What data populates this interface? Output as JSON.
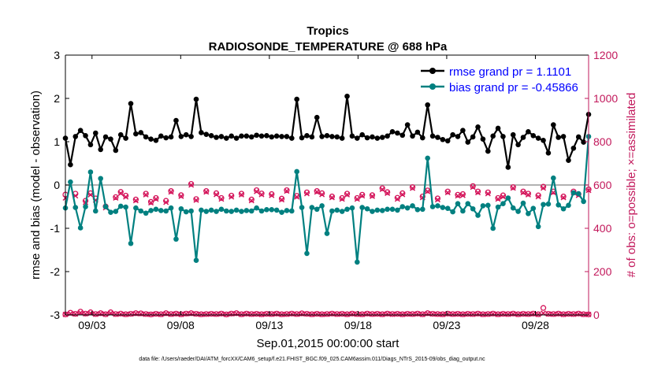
{
  "chart_data": {
    "type": "line",
    "title": "Tropics",
    "subtitle": "RADIOSONDE_TEMPERATURE @ 688 hPa",
    "xlabel": "Sep.01,2015 00:00:00 start",
    "ylabel_left": "rmse and bias (model - observation)",
    "ylabel_right": "# of obs: o=possible; ×=assimilated",
    "footer": "data file: /Users/raeder/DAI/ATM_forcXX/CAM6_setup/f.e21.FHIST_BGC.f09_025.CAM6assim.011/Diags_NTrS_2015-09/obs_diag_output.nc",
    "x_range": [
      1.5,
      31.0
    ],
    "ylim_left": [
      -3,
      3
    ],
    "ylim_right": [
      0,
      1200
    ],
    "x_ticks": [
      3,
      8,
      13,
      18,
      23,
      28
    ],
    "x_tick_labels": [
      "09/03",
      "09/08",
      "09/13",
      "09/18",
      "09/23",
      "09/28"
    ],
    "y_left_ticks": [
      -3,
      -2,
      -1,
      0,
      1,
      2,
      3
    ],
    "y_right_ticks": [
      0,
      200,
      400,
      600,
      800,
      1000,
      1200
    ],
    "zero_line": 0,
    "colors": {
      "rmse": "#000000",
      "bias": "#008080",
      "counts": "#d4145a",
      "legend_text": "#0000ff",
      "right_axis": "#c2185b"
    },
    "legend": [
      {
        "name": "rmse grand pr = 1.1101",
        "series": "rmse"
      },
      {
        "name": "bias grand pr = -0.45866",
        "series": "bias"
      }
    ],
    "series": [
      {
        "name": "rmse",
        "axis": "left",
        "values": [
          1.08,
          0.47,
          1.12,
          1.26,
          1.14,
          0.93,
          1.2,
          0.82,
          1.11,
          1.06,
          0.8,
          1.16,
          1.08,
          1.88,
          1.18,
          1.21,
          1.11,
          1.06,
          1.03,
          1.13,
          1.09,
          1.11,
          1.49,
          1.12,
          1.16,
          1.12,
          1.98,
          1.21,
          1.17,
          1.14,
          1.1,
          1.12,
          1.08,
          1.13,
          1.08,
          1.13,
          1.13,
          1.11,
          1.15,
          1.13,
          1.14,
          1.11,
          1.13,
          1.12,
          1.12,
          1.08,
          1.98,
          1.09,
          1.14,
          1.11,
          1.56,
          1.12,
          1.14,
          1.12,
          1.11,
          1.08,
          2.05,
          1.13,
          1.08,
          1.16,
          1.09,
          1.11,
          1.08,
          1.1,
          1.13,
          1.23,
          1.2,
          1.15,
          1.39,
          1.13,
          1.22,
          1.09,
          1.85,
          1.13,
          1.1,
          1.05,
          1.02,
          1.16,
          1.12,
          1.26,
          0.99,
          1.11,
          1.34,
          1.06,
          0.78,
          1.13,
          1.31,
          1.12,
          0.41,
          1.16,
          0.93,
          1.1,
          1.23,
          1.14,
          1.08,
          1.03,
          0.74,
          1.39,
          1.1,
          1.12,
          0.57,
          0.85,
          1.11,
          0.99,
          1.63
        ]
      },
      {
        "name": "bias",
        "axis": "left",
        "values": [
          -0.53,
          0.07,
          -0.52,
          -0.99,
          -0.5,
          0.3,
          -0.6,
          0.15,
          -0.5,
          -0.63,
          -0.61,
          -0.49,
          -0.51,
          -1.35,
          -0.53,
          -0.6,
          -0.65,
          -0.59,
          -0.56,
          -0.59,
          -0.6,
          -0.53,
          -1.25,
          -0.55,
          -0.62,
          -0.6,
          -1.74,
          -0.58,
          -0.61,
          -0.58,
          -0.61,
          -0.56,
          -0.6,
          -0.61,
          -0.58,
          -0.61,
          -0.59,
          -0.6,
          -0.53,
          -0.6,
          -0.57,
          -0.57,
          -0.58,
          -0.63,
          -0.59,
          -0.6,
          0.31,
          -0.52,
          -1.58,
          -0.52,
          -0.56,
          -0.48,
          -1.12,
          -0.6,
          -0.58,
          -0.61,
          -0.56,
          -0.53,
          -1.78,
          -0.52,
          -0.55,
          -0.61,
          -0.58,
          -0.59,
          -0.56,
          -0.56,
          -0.58,
          -0.5,
          -0.53,
          -0.48,
          -0.57,
          -0.56,
          0.62,
          -0.5,
          -0.48,
          -0.52,
          -0.54,
          -0.62,
          -0.43,
          -0.6,
          -0.43,
          -0.55,
          -0.7,
          -0.48,
          -0.47,
          -1.0,
          -0.51,
          -0.43,
          -0.3,
          -0.53,
          -0.61,
          -0.42,
          -0.66,
          -0.54,
          -0.96,
          -0.45,
          -0.44,
          0.16,
          -0.46,
          -0.55,
          -0.47,
          -0.18,
          -0.2,
          -0.38,
          1.12
        ]
      },
      {
        "name": "possible",
        "axis": "right",
        "marker": "circle",
        "values": [
          556,
          0,
          560,
          0,
          527,
          562,
          538,
          0,
          501,
          0,
          544,
          568,
          551,
          0,
          533,
          0,
          560,
          522,
          540,
          0,
          527,
          572,
          0,
          553,
          0,
          605,
          535,
          0,
          572,
          0,
          562,
          540,
          0,
          551,
          0,
          560,
          0,
          533,
          576,
          561,
          0,
          558,
          0,
          537,
          576,
          0,
          550,
          0,
          566,
          0,
          572,
          562,
          0,
          547,
          0,
          540,
          560,
          0,
          540,
          555,
          0,
          553,
          0,
          585,
          567,
          0,
          541,
          562,
          0,
          590,
          0,
          547,
          575,
          0,
          538,
          0,
          570,
          0,
          555,
          558,
          0,
          595,
          570,
          0,
          566,
          0,
          540,
          552,
          0,
          590,
          0,
          570,
          560,
          0,
          552,
          592,
          0,
          570,
          0,
          547,
          0,
          570,
          558,
          0,
          580
        ]
      },
      {
        "name": "assimilated",
        "axis": "right",
        "marker": "x",
        "values": [
          540,
          0,
          550,
          0,
          520,
          555,
          530,
          0,
          495,
          0,
          540,
          562,
          545,
          0,
          528,
          0,
          555,
          518,
          535,
          0,
          520,
          568,
          0,
          548,
          0,
          600,
          530,
          0,
          568,
          0,
          556,
          535,
          0,
          545,
          0,
          555,
          0,
          528,
          570,
          556,
          0,
          552,
          0,
          532,
          572,
          0,
          545,
          0,
          560,
          0,
          568,
          556,
          0,
          542,
          0,
          535,
          555,
          0,
          535,
          550,
          0,
          548,
          0,
          580,
          562,
          0,
          535,
          556,
          0,
          585,
          0,
          542,
          570,
          0,
          532,
          0,
          565,
          0,
          550,
          552,
          0,
          590,
          565,
          0,
          560,
          0,
          535,
          546,
          0,
          586,
          0,
          565,
          555,
          0,
          546,
          586,
          0,
          565,
          0,
          542,
          0,
          565,
          552,
          0,
          575
        ]
      },
      {
        "name": "possible-bottom",
        "axis": "right",
        "marker": "circle",
        "values": [
          2,
          10,
          5,
          15,
          6,
          12,
          4,
          8,
          3,
          12,
          4,
          6,
          3,
          5,
          8,
          7,
          4,
          2,
          5,
          3,
          8,
          4,
          6,
          3,
          6,
          8,
          5,
          3,
          4,
          5,
          4,
          6,
          2,
          6,
          8,
          3,
          6,
          4,
          5,
          3,
          5,
          4,
          6,
          3,
          4,
          6,
          4,
          7,
          5,
          3,
          5,
          3,
          4,
          6,
          4,
          5,
          3,
          6,
          4,
          3,
          6,
          4,
          5,
          3,
          6,
          4,
          5,
          3,
          5,
          4,
          6,
          3,
          8,
          5,
          4,
          3,
          6,
          4,
          5,
          3,
          5,
          4,
          6,
          3,
          4,
          6,
          3,
          5,
          4,
          6,
          3,
          5,
          4,
          6,
          3,
          32,
          5,
          4,
          6,
          3,
          5,
          4,
          6,
          3,
          2
        ]
      },
      {
        "name": "assimilated-bottom",
        "axis": "right",
        "marker": "x",
        "values": [
          2,
          6,
          4,
          10,
          5,
          8,
          3,
          6,
          3,
          8,
          3,
          4,
          2,
          4,
          6,
          5,
          3,
          2,
          4,
          2,
          6,
          3,
          5,
          2,
          5,
          6,
          4,
          2,
          3,
          4,
          3,
          5,
          2,
          5,
          6,
          2,
          5,
          3,
          4,
          2,
          4,
          3,
          5,
          2,
          3,
          5,
          3,
          5,
          4,
          2,
          4,
          2,
          3,
          5,
          3,
          4,
          2,
          5,
          3,
          2,
          5,
          3,
          4,
          2,
          5,
          3,
          4,
          2,
          4,
          3,
          5,
          2,
          6,
          4,
          3,
          2,
          5,
          3,
          4,
          2,
          4,
          3,
          5,
          2,
          3,
          5,
          2,
          4,
          3,
          5,
          2,
          4,
          3,
          5,
          2,
          8,
          4,
          3,
          5,
          2,
          4,
          3,
          5,
          2,
          2
        ]
      }
    ]
  }
}
